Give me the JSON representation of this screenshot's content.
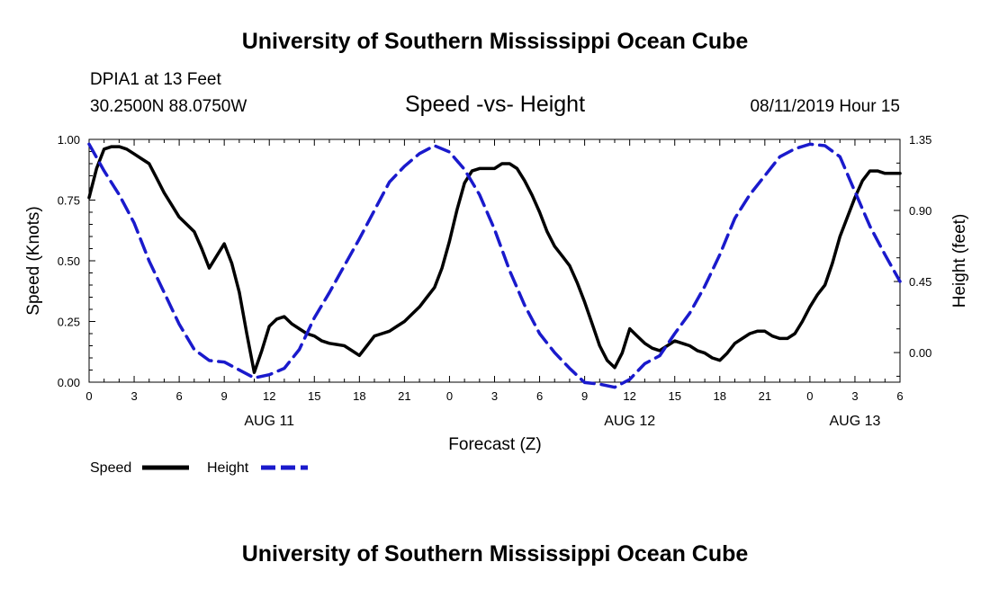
{
  "header": {
    "title_top": "University of Southern Mississippi Ocean Cube",
    "station": "DPIA1 at 13 Feet",
    "coords": "30.2500N 88.0750W",
    "datetime": "08/11/2019 Hour 15",
    "title_bottom": "University of Southern Mississippi Ocean Cube"
  },
  "chart_data": {
    "type": "line",
    "title": "Speed -vs- Height",
    "xlabel": "Forecast (Z)",
    "ylabel_left": "Speed (Knots)",
    "ylabel_right": "Height (feet)",
    "x_range": [
      0,
      54
    ],
    "xticks": [
      0,
      3,
      6,
      9,
      12,
      15,
      18,
      21,
      24,
      27,
      30,
      33,
      36,
      39,
      42,
      45,
      48,
      51,
      54
    ],
    "xtick_labels": [
      "0",
      "3",
      "6",
      "9",
      "12",
      "15",
      "18",
      "21",
      "0",
      "3",
      "6",
      "9",
      "12",
      "15",
      "18",
      "21",
      "0",
      "3",
      "6"
    ],
    "date_labels": [
      {
        "x": 12,
        "label": "AUG 11"
      },
      {
        "x": 36,
        "label": "AUG 12"
      },
      {
        "x": 51,
        "label": "AUG 13"
      }
    ],
    "ylim_left": [
      0,
      1.0
    ],
    "yticks_left": [
      0,
      0.25,
      0.5,
      0.75,
      1.0
    ],
    "ytick_labels_left": [
      "0.00",
      "0.25",
      "0.50",
      "0.75",
      "1.00"
    ],
    "ylim_right": [
      -0.1875,
      1.35
    ],
    "yticks_right": [
      0,
      0.45,
      0.9,
      1.35
    ],
    "ytick_labels_right": [
      "0.00",
      "0.45",
      "0.90",
      "1.35"
    ],
    "series": [
      {
        "name": "Speed",
        "axis": "left",
        "color": "#000000",
        "dash": "solid",
        "x": [
          0,
          0.5,
          1,
          1.5,
          2,
          2.5,
          3,
          3.5,
          4,
          4.5,
          5,
          5.5,
          6,
          6.5,
          7,
          7.5,
          8,
          8.5,
          9,
          9.5,
          10,
          10.5,
          11,
          11.5,
          12,
          12.5,
          13,
          13.5,
          14,
          14.5,
          15,
          15.5,
          16,
          16.5,
          17,
          17.5,
          18,
          18.5,
          19,
          19.5,
          20,
          20.5,
          21,
          21.5,
          22,
          22.5,
          23,
          23.5,
          24,
          24.5,
          25,
          25.5,
          26,
          26.5,
          27,
          27.5,
          28,
          28.5,
          29,
          29.5,
          30,
          30.5,
          31,
          31.5,
          32,
          32.5,
          33,
          33.5,
          34,
          34.5,
          35,
          35.5,
          36,
          36.5,
          37,
          37.5,
          38,
          38.5,
          39,
          39.5,
          40,
          40.5,
          41,
          41.5,
          42,
          42.5,
          43,
          43.5,
          44,
          44.5,
          45,
          45.5,
          46,
          46.5,
          47,
          47.5,
          48,
          48.5,
          49,
          49.5,
          50,
          50.5,
          51,
          51.5,
          52,
          52.5,
          53,
          53.5,
          54
        ],
        "values": [
          0.76,
          0.88,
          0.96,
          0.97,
          0.97,
          0.96,
          0.94,
          0.92,
          0.9,
          0.84,
          0.78,
          0.73,
          0.68,
          0.65,
          0.62,
          0.55,
          0.47,
          0.52,
          0.57,
          0.49,
          0.37,
          0.2,
          0.04,
          0.13,
          0.23,
          0.26,
          0.27,
          0.24,
          0.22,
          0.2,
          0.19,
          0.17,
          0.16,
          0.155,
          0.15,
          0.13,
          0.11,
          0.15,
          0.19,
          0.2,
          0.21,
          0.23,
          0.25,
          0.28,
          0.31,
          0.35,
          0.39,
          0.47,
          0.58,
          0.71,
          0.82,
          0.87,
          0.88,
          0.88,
          0.88,
          0.9,
          0.9,
          0.88,
          0.83,
          0.77,
          0.7,
          0.62,
          0.56,
          0.52,
          0.48,
          0.41,
          0.33,
          0.24,
          0.15,
          0.09,
          0.06,
          0.12,
          0.22,
          0.19,
          0.16,
          0.14,
          0.13,
          0.15,
          0.17,
          0.16,
          0.15,
          0.13,
          0.12,
          0.1,
          0.09,
          0.12,
          0.16,
          0.18,
          0.2,
          0.21,
          0.21,
          0.19,
          0.18,
          0.18,
          0.2,
          0.25,
          0.31,
          0.36,
          0.4,
          0.49,
          0.6,
          0.68,
          0.76,
          0.83,
          0.87,
          0.87,
          0.86,
          0.86,
          0.86
        ]
      },
      {
        "name": "Height",
        "axis": "right",
        "color": "#1a1acc",
        "dash": "dashed",
        "x": [
          0,
          1,
          2,
          3,
          4,
          5,
          6,
          7,
          8,
          9,
          10,
          11,
          12,
          13,
          14,
          15,
          16,
          17,
          18,
          19,
          20,
          21,
          22,
          23,
          24,
          25,
          26,
          27,
          28,
          29,
          30,
          31,
          32,
          33,
          34,
          35,
          36,
          37,
          38,
          39,
          40,
          41,
          42,
          43,
          44,
          45,
          46,
          47,
          48,
          49,
          50,
          51,
          52,
          53,
          54
        ],
        "values": [
          1.32,
          1.15,
          1.0,
          0.82,
          0.58,
          0.38,
          0.18,
          0.02,
          -0.05,
          -0.06,
          -0.11,
          -0.16,
          -0.14,
          -0.1,
          0.02,
          0.22,
          0.38,
          0.55,
          0.72,
          0.9,
          1.08,
          1.18,
          1.26,
          1.31,
          1.27,
          1.16,
          1.0,
          0.78,
          0.52,
          0.3,
          0.12,
          0.0,
          -0.1,
          -0.19,
          -0.2,
          -0.22,
          -0.17,
          -0.07,
          -0.02,
          0.12,
          0.25,
          0.42,
          0.62,
          0.85,
          1.0,
          1.12,
          1.24,
          1.29,
          1.32,
          1.31,
          1.24,
          1.02,
          0.8,
          0.62,
          0.45
        ]
      }
    ],
    "legend": [
      {
        "name": "Speed",
        "color": "#000000",
        "dash": "solid"
      },
      {
        "name": "Height",
        "color": "#1a1acc",
        "dash": "dashed"
      }
    ]
  }
}
